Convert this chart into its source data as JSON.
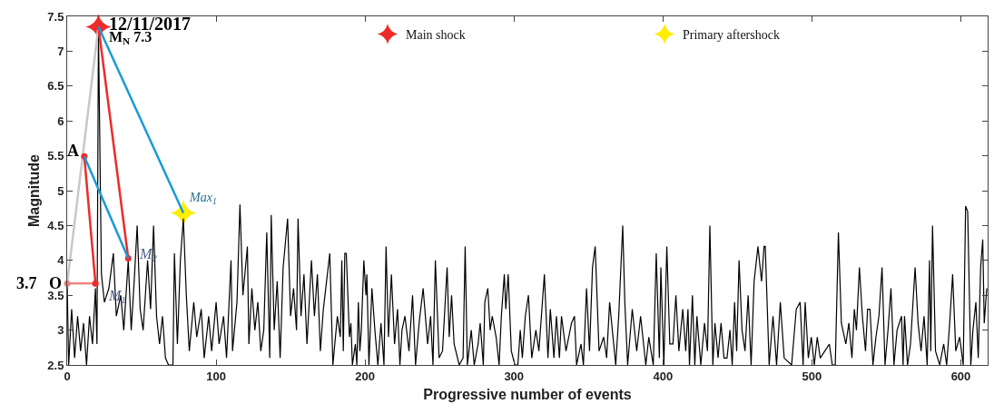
{
  "chart_data": {
    "type": "line",
    "xlabel": "Progressive number of events",
    "ylabel": "Magnitude",
    "xlim": [
      0,
      618
    ],
    "xticks": [
      0,
      100,
      200,
      300,
      400,
      500,
      600
    ],
    "ylim": [
      2.5,
      7.5
    ],
    "yticks": [
      2.5,
      3,
      3.5,
      4,
      4.5,
      5,
      5.5,
      6,
      6.5,
      7,
      7.5
    ],
    "legend": "top right",
    "series": [
      {
        "color": "#000000",
        "x": [
          0,
          1,
          3,
          5,
          7,
          9,
          11,
          13,
          15,
          17,
          19,
          20,
          21,
          23,
          25,
          28,
          31,
          33,
          36,
          38,
          41,
          43,
          45,
          47,
          49,
          51,
          54,
          56,
          58,
          60,
          62,
          64,
          66,
          68,
          71,
          72,
          74,
          76,
          78,
          80,
          82,
          85,
          87,
          90,
          92,
          95,
          97,
          100,
          102,
          105,
          107,
          110,
          111,
          114,
          116,
          118,
          121,
          122,
          124,
          126,
          128,
          130,
          132,
          134,
          136,
          137,
          139,
          141,
          143,
          145,
          148,
          150,
          152,
          154,
          155,
          157,
          159,
          161,
          164,
          166,
          168,
          170,
          172,
          176.3,
          178.4,
          181.4,
          183.4,
          184.4,
          185.4,
          186.4,
          187.4,
          189.5,
          190.5,
          191.5,
          193.5,
          194.5,
          195.5,
          196.5,
          197.5,
          199.2,
          200.6,
          201.2,
          202.6,
          204.6,
          206.6,
          208.6,
          210.7,
          212.7,
          214.1,
          215.7,
          217.7,
          219.8,
          221.8,
          223.4,
          224.8,
          226.8,
          229.5,
          231.9,
          233.9,
          236.3,
          239,
          242,
          244,
          245.6,
          247.2,
          249.7,
          252,
          255.1,
          256.5,
          258.1,
          259.8,
          263.2,
          265.8,
          267.2,
          268.7,
          271.3,
          273.3,
          275.9,
          277.3,
          279.4,
          280.4,
          282.4,
          284,
          285.4,
          288,
          290,
          291.5,
          293.5,
          294.5,
          296.1,
          298.2,
          300.6,
          302.6,
          304.2,
          305.6,
          307.6,
          309.7,
          311.9,
          314.7,
          316.7,
          318.4,
          320.4,
          322.8,
          324.4,
          326.8,
          328.5,
          330.5,
          331.9,
          334.9,
          338.6,
          340.6,
          342,
          345,
          346.6,
          348.7,
          350.7,
          352.7,
          354.5,
          357.1,
          360.2,
          362.2,
          364.2,
          368.3,
          370.3,
          373,
          374.4,
          376.3,
          379.4,
          382.4,
          385,
          388.5,
          390.5,
          393.5,
          395.5,
          397.6,
          398.6,
          400.6,
          402.6,
          404.6,
          406.7,
          408.7,
          410.7,
          413.3,
          415.3,
          416.8,
          417.8,
          419.8,
          421.4,
          422.8,
          425.4,
          427.9,
          429.9,
          431.5,
          433.5,
          434.9,
          437,
          439,
          441,
          443,
          445,
          446.5,
          448.1,
          449.5,
          451.1,
          453.1,
          455.1,
          457.2,
          459.2,
          461.2,
          463.8,
          466.2,
          467.9,
          468.7,
          471.3,
          473.9,
          476.3,
          478.8,
          481.4,
          486.4,
          489.5,
          492.1,
          494.1,
          495.5,
          497.6,
          499.6,
          501.6,
          503.6,
          505.6,
          508.7,
          511.7,
          513.7,
          515.7,
          517.8,
          519.8,
          522.8,
          524.8,
          526.9,
          528.5,
          529.9,
          531.9,
          533.9,
          536,
          537.4,
          539,
          541,
          543,
          545,
          547.1,
          549.1,
          551.1,
          553.1,
          555.1,
          557.2,
          560.2,
          561.2,
          562.2,
          564.2,
          566.2,
          569.3,
          571.3,
          573.3,
          575.3,
          577.4,
          579,
          579.8,
          581,
          583,
          585.8,
          588.5,
          590.5,
          592.5,
          594.5,
          596.6,
          599.2,
          601.6,
          603.2,
          604.6,
          606.7,
          608.1,
          610.1,
          611.7,
          613.3,
          614.7,
          615.7,
          617.4
        ],
        "values": [
          3.67,
          2.5,
          3.3,
          2.6,
          3.2,
          2.7,
          3.1,
          2.5,
          3.2,
          2.8,
          3.6,
          2.8,
          7.3,
          3.8,
          3.4,
          3.6,
          4.1,
          3.2,
          3.5,
          3.0,
          4.0,
          3.0,
          3.7,
          4.5,
          3.3,
          3.0,
          4.0,
          3.3,
          4.5,
          3.2,
          2.8,
          3.2,
          2.6,
          2.5,
          2.5,
          4.1,
          2.8,
          4.0,
          4.6,
          3.5,
          2.7,
          3.4,
          2.9,
          3.3,
          2.6,
          3.2,
          2.7,
          3.4,
          2.8,
          3.2,
          2.6,
          4.0,
          2.7,
          3.4,
          4.8,
          3.5,
          4.2,
          2.8,
          3.6,
          3.0,
          3.4,
          2.7,
          3.0,
          4.4,
          2.6,
          4.65,
          3.0,
          3.7,
          2.6,
          3.9,
          4.6,
          3.2,
          3.6,
          3.0,
          4.6,
          3.2,
          3.8,
          2.8,
          4.0,
          3.2,
          3.8,
          2.7,
          3.3,
          4.1,
          2.5,
          3.2,
          2.9,
          4.0,
          2.7,
          4.1,
          4.1,
          2.9,
          3.1,
          2.5,
          2.8,
          2.5,
          3.4,
          2.7,
          3.0,
          4.0,
          3.5,
          3.8,
          2.5,
          3.6,
          3.0,
          2.5,
          3.1,
          2.5,
          4.2,
          2.9,
          3.8,
          2.8,
          3.3,
          2.5,
          3.0,
          3.2,
          2.7,
          3.5,
          2.5,
          3.1,
          3.6,
          2.8,
          3.2,
          2.5,
          4.0,
          2.6,
          2.7,
          3.9,
          2.9,
          3.5,
          2.8,
          2.5,
          2.6,
          4.2,
          2.5,
          3.0,
          2.5,
          2.8,
          3.1,
          2.5,
          3.4,
          3.6,
          3.0,
          3.2,
          2.9,
          2.5,
          3.2,
          3.8,
          3.3,
          3.8,
          2.7,
          2.5,
          2.5,
          3.0,
          2.6,
          3.2,
          3.5,
          2.6,
          3.0,
          2.7,
          3.2,
          3.8,
          2.6,
          3.3,
          2.6,
          3.2,
          2.6,
          3.2,
          2.7,
          3.1,
          3.2,
          2.5,
          2.8,
          2.5,
          3.6,
          2.7,
          3.9,
          4.2,
          2.7,
          2.9,
          2.6,
          3.4,
          2.5,
          3.2,
          4.5,
          3.4,
          2.5,
          3.3,
          2.7,
          3.2,
          2.5,
          2.9,
          2.5,
          4.1,
          2.6,
          3.9,
          2.5,
          4.2,
          2.8,
          2.8,
          3.5,
          2.7,
          3.3,
          2.7,
          3.3,
          2.5,
          3.5,
          2.5,
          3.2,
          2.5,
          3.1,
          2.7,
          4.5,
          2.5,
          3.1,
          2.6,
          3.1,
          2.6,
          2.6,
          3.0,
          2.5,
          3.4,
          2.7,
          4.0,
          3.0,
          2.7,
          3.5,
          2.5,
          3.7,
          4.2,
          3.7,
          4.2,
          4.2,
          2.5,
          3.2,
          2.5,
          3.4,
          2.6,
          2.5,
          3.3,
          3.4,
          2.5,
          3.4,
          2.6,
          2.9,
          2.5,
          2.9,
          2.6,
          2.7,
          2.8,
          2.5,
          2.5,
          4.4,
          3.1,
          2.8,
          3.1,
          2.6,
          3.3,
          3.0,
          3.9,
          3.2,
          2.7,
          3.3,
          3.3,
          2.5,
          2.9,
          3.2,
          3.9,
          2.5,
          3.0,
          3.6,
          2.5,
          3.0,
          3.2,
          2.5,
          3.2,
          2.5,
          2.8,
          3.9,
          3.1,
          2.7,
          3.2,
          2.5,
          4.0,
          2.7,
          4.5,
          2.7,
          2.5,
          2.8,
          2.5,
          3.1,
          3.8,
          2.7,
          2.9,
          2.5,
          4.78,
          4.7,
          2.5,
          3.0,
          3.4,
          2.6,
          3.9,
          4.3,
          3.1,
          3.6
        ]
      },
      {
        "color": "#c8c8c8",
        "x": [
          0,
          21
        ],
        "values": [
          3.67,
          7.35
        ]
      },
      {
        "color": "#f08080",
        "x": [
          0,
          19
        ],
        "values": [
          3.67,
          3.67
        ],
        "marker": "circle"
      },
      {
        "color": "#ee2b2b",
        "x": [
          11.5,
          19
        ],
        "values": [
          5.49,
          3.67
        ],
        "marker": "circle"
      },
      {
        "color": "#ee2b2b",
        "x": [
          21,
          41
        ],
        "values": [
          7.35,
          4.03
        ],
        "marker": "circle"
      },
      {
        "color": "#1a9ad6",
        "x": [
          11.5,
          41
        ],
        "values": [
          5.49,
          4.03
        ]
      },
      {
        "color": "#1a9ad6",
        "x": [
          21,
          78
        ],
        "values": [
          7.35,
          4.68
        ]
      },
      {
        "type": "scatter",
        "name": "Main shock",
        "color": "#ee2b2b",
        "x": [
          21
        ],
        "values": [
          7.35
        ],
        "marker": "star"
      },
      {
        "type": "scatter",
        "name": "Primary aftershock",
        "color": "#ffee00",
        "x": [
          78
        ],
        "values": [
          4.68
        ],
        "marker": "star"
      }
    ],
    "annotations": [
      {
        "text": "12/11/2017",
        "x": 21,
        "y": 7.35
      },
      {
        "text": "M$_{N}$ 7.3",
        "x": 21,
        "y": 7.35
      },
      {
        "text": "A",
        "x": 11.5,
        "y": 5.49
      },
      {
        "text": "3.7   O",
        "x": 0,
        "y": 3.67
      },
      {
        "text": "M$_{1}$",
        "x": 19,
        "y": 3.67
      },
      {
        "text": "M$_{2}$",
        "x": 41,
        "y": 4.03
      },
      {
        "text": "Max$_{1}$",
        "x": 78,
        "y": 4.68
      }
    ]
  }
}
